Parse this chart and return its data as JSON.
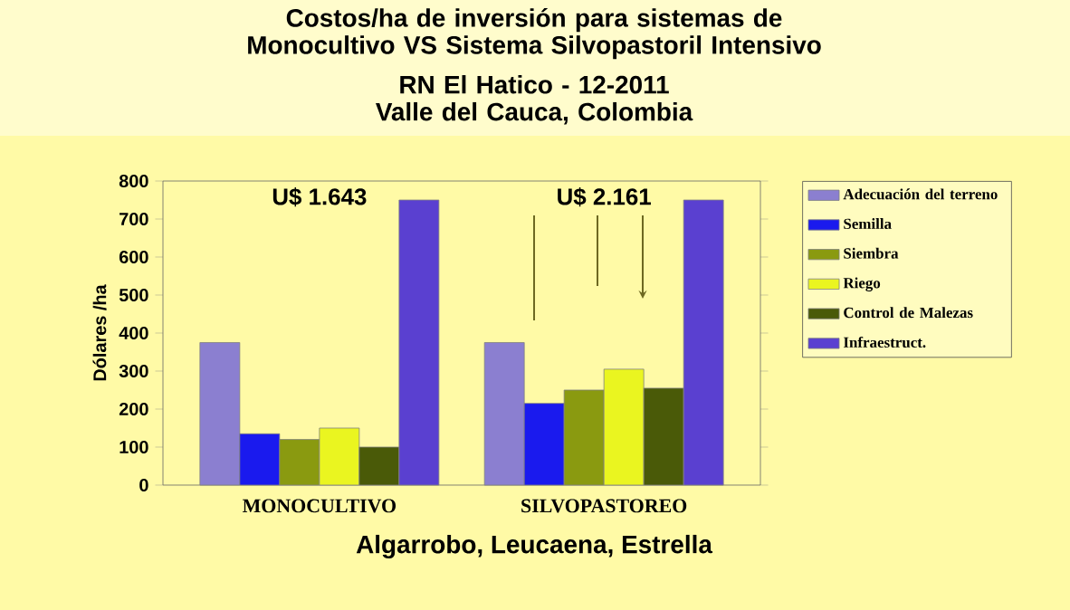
{
  "chart_data": {
    "type": "bar",
    "title": "Costos/ha de inversión para sistemas de Monocultivo VS Sistema Silvopastoril Intensivo",
    "subtitle": "RN El Hatico - 12-2011 Valle del Cauca, Colombia",
    "ylabel": "Dólares /ha",
    "categories": [
      "MONOCULTIVO",
      "SILVOPASTOREO"
    ],
    "series": [
      {
        "name": "Adecuación del terreno",
        "color": "#8b7fd0",
        "values": [
          375,
          375
        ]
      },
      {
        "name": "Semilla",
        "color": "#1a1aee",
        "values": [
          135,
          215
        ]
      },
      {
        "name": "Siembra",
        "color": "#8a9a10",
        "values": [
          120,
          250
        ]
      },
      {
        "name": "Riego",
        "color": "#eaf520",
        "values": [
          150,
          305
        ]
      },
      {
        "name": "Control de Malezas",
        "color": "#4a5a08",
        "values": [
          100,
          255
        ]
      },
      {
        "name": "Infraestruct.",
        "color": "#5a40d0",
        "values": [
          750,
          750
        ]
      }
    ],
    "ylim": [
      0,
      800
    ],
    "yticks": [
      0,
      100,
      200,
      300,
      400,
      500,
      600,
      700,
      800
    ],
    "legend": "right",
    "grid": false,
    "annotations": [
      "U$ 1.643",
      "U$ 2.161",
      "Algarrobo, Leucaena, Estrella"
    ]
  }
}
